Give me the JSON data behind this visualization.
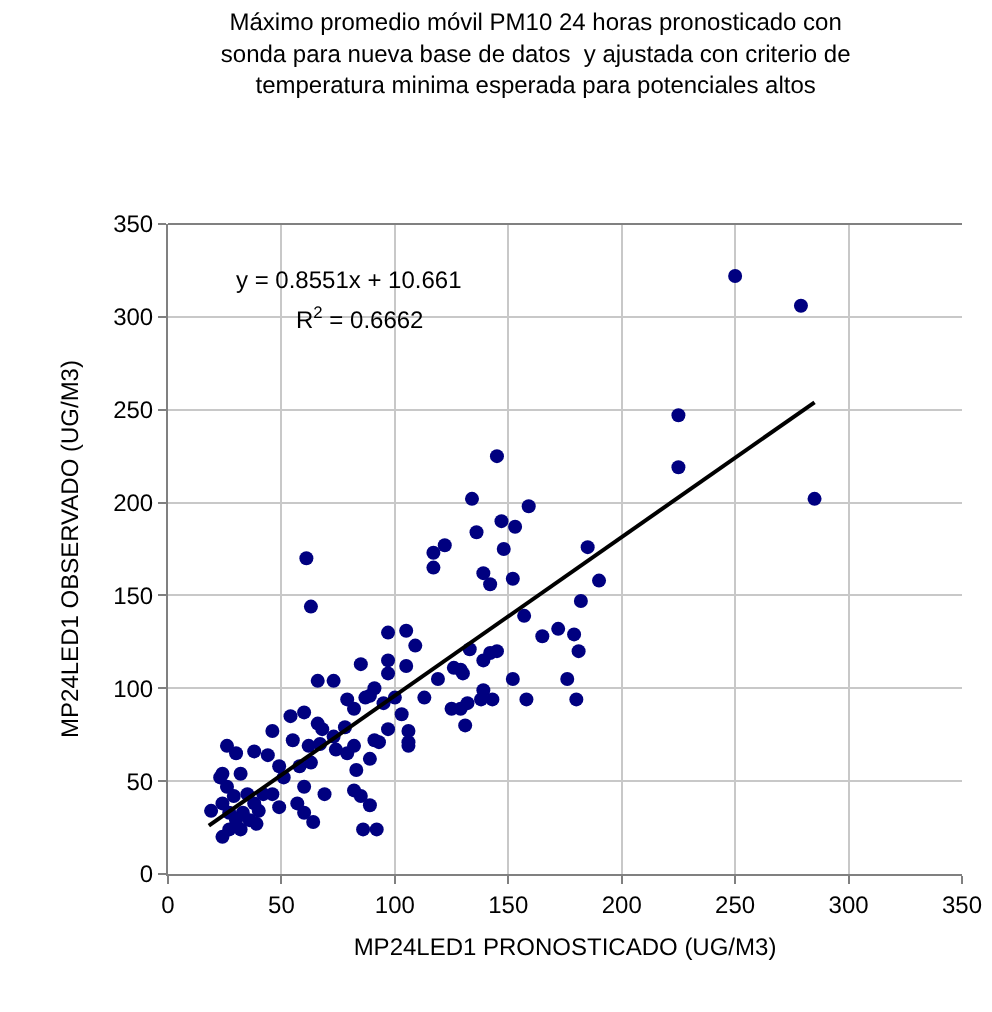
{
  "chart_data": {
    "type": "scatter",
    "title": "Máximo promedio móvil PM10 24 horas pronosticado con\nsonda para nueva base de datos  y ajustada con criterio de\ntemperatura minima esperada para potenciales altos",
    "xlabel": "MP24LED1 PRONOSTICADO (UG/M3)",
    "ylabel": "MP24LED1 OBSERVADO (UG/M3)",
    "annotations": [
      "y = 0.8551x + 10.661",
      "R$^{2}$ = 0.6662"
    ],
    "xlim": [
      0,
      350
    ],
    "xticks": [
      0,
      50,
      100,
      150,
      200,
      250,
      300,
      350
    ],
    "ylim": [
      0,
      350
    ],
    "yticks": [
      0,
      50,
      100,
      150,
      200,
      250,
      300,
      350
    ],
    "grid": true,
    "series": [
      {
        "color": "#000080",
        "marker": "circle",
        "x": [
          19,
          24,
          26,
          24,
          27,
          32,
          24,
          27,
          30,
          33,
          36,
          39,
          38,
          40,
          42,
          23,
          26,
          29,
          32,
          35,
          30,
          38,
          44,
          46,
          46,
          49,
          49,
          51,
          54,
          55,
          57,
          58,
          60,
          60,
          60,
          61,
          62,
          63,
          63,
          64,
          66,
          66,
          67,
          68,
          69,
          73,
          73,
          74,
          78,
          79,
          79,
          82,
          82,
          83,
          82,
          85,
          85,
          86,
          89,
          92,
          89,
          91,
          93,
          87,
          89,
          91,
          95,
          97,
          105,
          109,
          97,
          105,
          97,
          100,
          103,
          97,
          106,
          106,
          106,
          113,
          117,
          117,
          122,
          119,
          126,
          129,
          130,
          133,
          139,
          142,
          145,
          125,
          129,
          132,
          131,
          138,
          139,
          143,
          134,
          136,
          139,
          142,
          145,
          147,
          148,
          152,
          153,
          159,
          152,
          158,
          157,
          165,
          172,
          179,
          181,
          176,
          180,
          182,
          185,
          190,
          225,
          225,
          250,
          279,
          285
        ],
        "values": [
          34,
          54,
          69,
          20,
          24,
          24,
          38,
          33,
          29,
          33,
          29,
          27,
          38,
          34,
          43,
          52,
          47,
          42,
          54,
          43,
          65,
          66,
          64,
          77,
          43,
          36,
          58,
          52,
          85,
          72,
          38,
          58,
          87,
          47,
          33,
          170,
          69,
          144,
          60,
          28,
          104,
          81,
          70,
          78,
          43,
          104,
          74,
          67,
          79,
          94,
          65,
          89,
          69,
          56,
          45,
          42,
          113,
          24,
          37,
          24,
          62,
          72,
          71,
          95,
          96,
          100,
          92,
          130,
          131,
          123,
          115,
          112,
          108,
          95,
          86,
          78,
          77,
          71,
          69,
          95,
          165,
          173,
          177,
          105,
          111,
          110,
          108,
          121,
          115,
          119,
          120,
          89,
          89,
          92,
          80,
          94,
          99,
          94,
          202,
          184,
          162,
          156,
          225,
          190,
          175,
          159,
          187,
          198,
          105,
          94,
          139,
          128,
          132,
          129,
          120,
          105,
          94,
          147,
          176,
          158,
          247,
          219,
          322,
          306,
          202
        ]
      },
      {
        "type": "line",
        "color": "#000000",
        "line_style": "solid",
        "x": [
          18,
          285
        ],
        "values": [
          26,
          254
        ]
      }
    ]
  }
}
